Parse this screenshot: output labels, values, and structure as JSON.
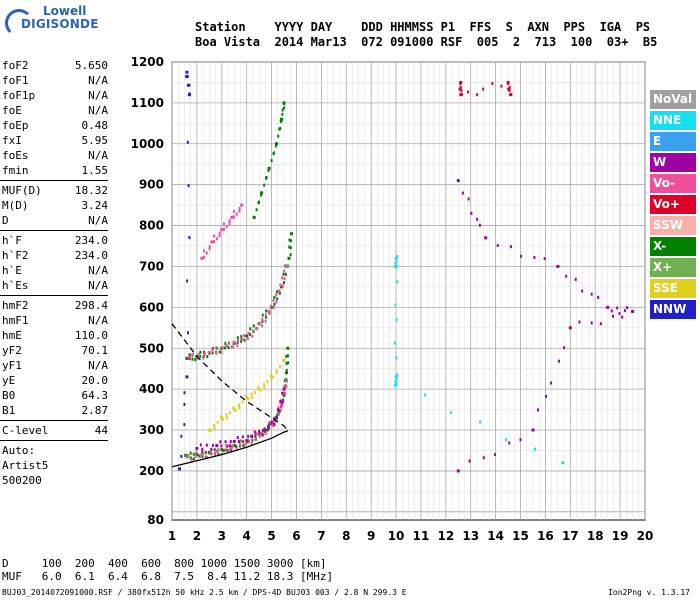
{
  "logo": {
    "line1": "Lowell",
    "line2": "DIGISONDE"
  },
  "header": {
    "line1": "Station    YYYY DAY    DDD HHMMSS P1  FFS  S  AXN  PPS  IGA  PS",
    "line2": "Boa Vista  2014 Mar13  072 091000 RSF  005  2  713  100  03+  B5"
  },
  "params": [
    {
      "key": "foF2",
      "value": "5.650"
    },
    {
      "key": "foF1",
      "value": "N/A"
    },
    {
      "key": "foF1p",
      "value": "N/A"
    },
    {
      "key": "foE",
      "value": "N/A"
    },
    {
      "key": "foEp",
      "value": "0.48"
    },
    {
      "key": "fxI",
      "value": "5.95"
    },
    {
      "key": "foEs",
      "value": "N/A"
    },
    {
      "key": "fmin",
      "value": "1.55"
    },
    {
      "sep": true
    },
    {
      "key": "MUF(D)",
      "value": "18.32"
    },
    {
      "key": "M(D)",
      "value": "3.24"
    },
    {
      "key": "D",
      "value": "N/A"
    },
    {
      "sep": true
    },
    {
      "key": "h`F",
      "value": "234.0"
    },
    {
      "key": "h`F2",
      "value": "234.0"
    },
    {
      "key": "h`E",
      "value": "N/A"
    },
    {
      "key": "h`Es",
      "value": "N/A"
    },
    {
      "sep": true
    },
    {
      "key": "hmF2",
      "value": "298.4"
    },
    {
      "key": "hmF1",
      "value": "N/A"
    },
    {
      "key": "hmE",
      "value": "110.0"
    },
    {
      "key": "yF2",
      "value": "70.1"
    },
    {
      "key": "yF1",
      "value": "N/A"
    },
    {
      "key": "yE",
      "value": "20.0"
    },
    {
      "key": "B0",
      "value": "64.3"
    },
    {
      "key": "B1",
      "value": "2.87"
    },
    {
      "sep": true
    },
    {
      "key": "C-level",
      "value": "44"
    },
    {
      "sep": true
    }
  ],
  "extra_text": [
    "Auto:",
    "Artist5",
    "500200"
  ],
  "legend": [
    {
      "label": "NoVal",
      "color": "#a0a0a0"
    },
    {
      "label": "NNE",
      "color": "#16e0f0"
    },
    {
      "label": "E",
      "color": "#3aa0f0"
    },
    {
      "label": "W",
      "color": "#a000a0"
    },
    {
      "label": "Vo-",
      "color": "#f0509a"
    },
    {
      "label": "Vo+",
      "color": "#e0002a"
    },
    {
      "label": "SSW",
      "color": "#f8b0a8"
    },
    {
      "label": "X-",
      "color": "#008000"
    },
    {
      "label": "X+",
      "color": "#70b050"
    },
    {
      "label": "SSE",
      "color": "#e0d020"
    },
    {
      "label": "NNW",
      "color": "#2020c8"
    }
  ],
  "footer": {
    "line1": "D     100  200  400  600  800 1000 1500 3000 [km]",
    "line2": "MUF   6.0  6.1  6.4  6.8  7.5  8.4 11.2 18.3 [MHz]",
    "bottom": "BUJ03_2014072091000.RSF / 380fx512h 50 kHz 2.5 km / DPS-4D BUJ03 003 / 2.8 N 299.3 E",
    "version": "Ion2Png v. 1.3.17"
  },
  "chart_data": {
    "type": "scatter",
    "x_ticks": [
      "1",
      "2",
      "3",
      "4",
      "5",
      "6",
      "7",
      "8",
      "9",
      "10",
      "11",
      "12",
      "13",
      "14",
      "15",
      "16",
      "17",
      "18",
      "19",
      "20"
    ],
    "y_ticks": [
      "80",
      "200",
      "300",
      "400",
      "500",
      "600",
      "700",
      "800",
      "900",
      "1000",
      "1100",
      "1200"
    ],
    "xlim": [
      1,
      20
    ],
    "ylim": [
      80,
      1200
    ],
    "grid": true,
    "legend_position": "right",
    "series": [
      {
        "color": "#008000",
        "points": [
          [
            1.55,
            238
          ],
          [
            2,
            240
          ],
          [
            2.5,
            245
          ],
          [
            3,
            252
          ],
          [
            3.5,
            262
          ],
          [
            4,
            274
          ],
          [
            4.5,
            290
          ],
          [
            5,
            315
          ],
          [
            5.3,
            345
          ],
          [
            5.5,
            385
          ],
          [
            5.6,
            440
          ],
          [
            5.65,
            500
          ]
        ]
      },
      {
        "color": "#f0509a",
        "points": [
          [
            1.6,
            235
          ],
          [
            2.2,
            240
          ],
          [
            2.8,
            248
          ],
          [
            3.4,
            258
          ],
          [
            4,
            270
          ],
          [
            4.6,
            292
          ],
          [
            5.1,
            320
          ],
          [
            5.4,
            360
          ],
          [
            5.6,
            420
          ]
        ]
      },
      {
        "color": "#a000a0",
        "points": [
          [
            2,
            255
          ],
          [
            2.8,
            262
          ],
          [
            3.5,
            272
          ],
          [
            4.2,
            285
          ],
          [
            4.8,
            300
          ],
          [
            5.2,
            330
          ],
          [
            5.5,
            400
          ]
        ]
      },
      {
        "color": "#e0d020",
        "points": [
          [
            2.5,
            300
          ],
          [
            3,
            330
          ],
          [
            3.5,
            350
          ],
          [
            4,
            380
          ],
          [
            4.5,
            400
          ],
          [
            5,
            430
          ],
          [
            5.5,
            470
          ]
        ]
      },
      {
        "color": "#008000",
        "points": [
          [
            1.6,
            475
          ],
          [
            2,
            480
          ],
          [
            2.5,
            488
          ],
          [
            3,
            500
          ],
          [
            3.5,
            512
          ],
          [
            4,
            530
          ],
          [
            4.5,
            560
          ],
          [
            5,
            600
          ],
          [
            5.4,
            650
          ],
          [
            5.7,
            720
          ],
          [
            5.8,
            780
          ]
        ]
      },
      {
        "color": "#f0509a",
        "points": [
          [
            1.7,
            478
          ],
          [
            2.5,
            490
          ],
          [
            3.2,
            505
          ],
          [
            3.8,
            522
          ],
          [
            4.4,
            548
          ],
          [
            4.9,
            590
          ],
          [
            5.3,
            640
          ],
          [
            5.6,
            700
          ]
        ]
      },
      {
        "color": "#008000",
        "points": [
          [
            4.3,
            820
          ],
          [
            4.6,
            880
          ],
          [
            4.9,
            940
          ],
          [
            5.2,
            1000
          ],
          [
            5.4,
            1060
          ],
          [
            5.5,
            1100
          ]
        ]
      },
      {
        "color": "#f0509a",
        "points": [
          [
            2.2,
            720
          ],
          [
            2.6,
            760
          ],
          [
            3,
            790
          ],
          [
            3.4,
            820
          ],
          [
            3.8,
            850
          ]
        ]
      },
      {
        "color": "#e0002a",
        "points": [
          [
            12.6,
            1150
          ],
          [
            12.6,
            1120
          ],
          [
            14.5,
            1150
          ],
          [
            14.6,
            1120
          ]
        ]
      },
      {
        "color": "#16e0f0",
        "points": [
          [
            10,
            720
          ],
          [
            10,
            700
          ],
          [
            10,
            430
          ],
          [
            10,
            410
          ],
          [
            16.7,
            220
          ]
        ]
      },
      {
        "color": "#a000a0",
        "points": [
          [
            12.5,
            910
          ],
          [
            13.6,
            770
          ],
          [
            16.5,
            700
          ],
          [
            18.5,
            600
          ],
          [
            19.5,
            590
          ],
          [
            17,
            550
          ],
          [
            15.5,
            300
          ],
          [
            12.5,
            200
          ]
        ]
      },
      {
        "color": "#2020c8",
        "points": [
          [
            1.6,
            1175
          ],
          [
            1.7,
            1120
          ],
          [
            1.6,
            430
          ],
          [
            1.3,
            205
          ]
        ]
      }
    ],
    "profile": {
      "points": [
        [
          1.0,
          210
        ],
        [
          2,
          225
        ],
        [
          3,
          240
        ],
        [
          4,
          258
        ],
        [
          5,
          280
        ],
        [
          5.5,
          295
        ],
        [
          5.65,
          298
        ]
      ]
    },
    "profile_upper": {
      "points": [
        [
          1.0,
          560
        ],
        [
          2,
          480
        ],
        [
          3,
          420
        ],
        [
          4,
          370
        ],
        [
          5,
          330
        ],
        [
          5.5,
          310
        ],
        [
          5.65,
          298
        ]
      ]
    }
  }
}
